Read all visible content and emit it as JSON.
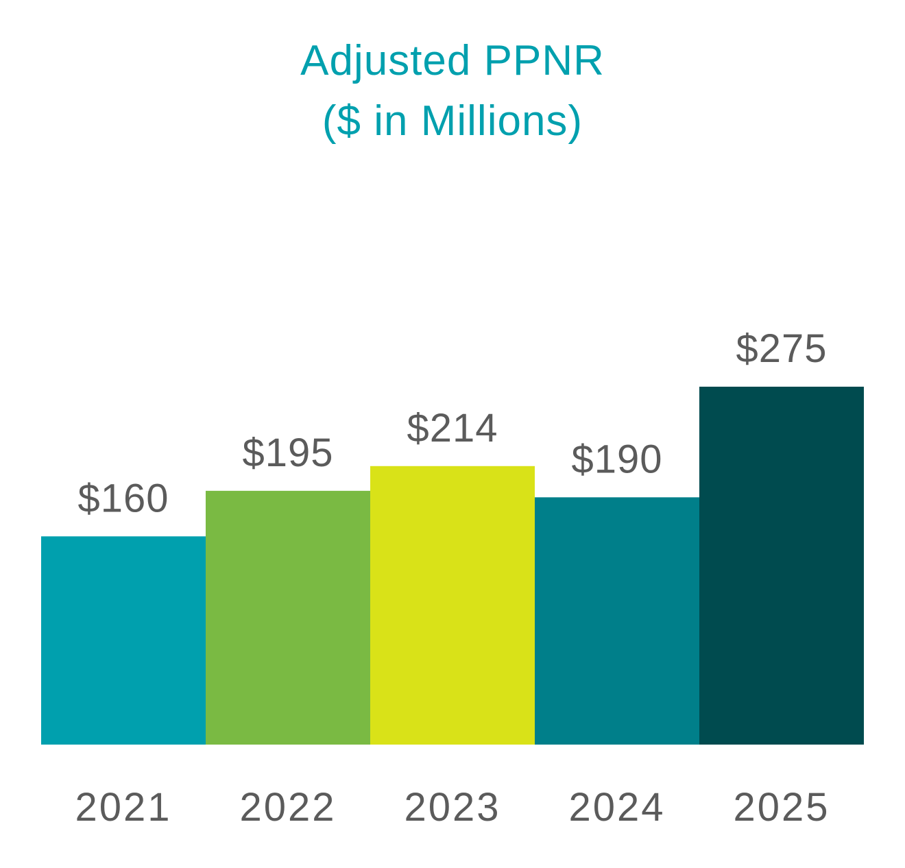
{
  "chart_data": {
    "type": "bar",
    "title": [
      "Adjusted PPNR",
      "($ in Millions)"
    ],
    "categories": [
      "2021",
      "2022",
      "2023",
      "2024",
      "2025"
    ],
    "values": [
      160,
      195,
      214,
      190,
      275
    ],
    "value_labels": [
      "$160",
      "$195",
      "$214",
      "$190",
      "$275"
    ],
    "colors": [
      "#00a0ae",
      "#7aba43",
      "#d9e218",
      "#007f8a",
      "#004b4f"
    ],
    "title_color": "#00a0ae",
    "label_color": "#5b5b5b",
    "ylim": [
      0,
      275
    ],
    "grid": false,
    "legend": "none"
  }
}
